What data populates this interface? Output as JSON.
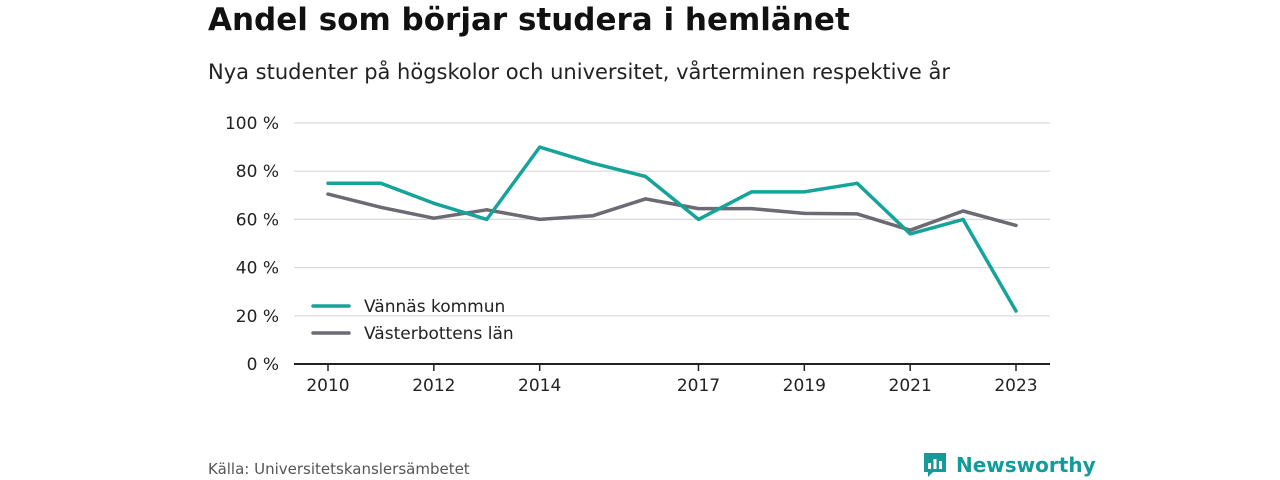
{
  "header": {
    "title": "Andel som börjar studera i hemlänet",
    "subtitle": "Nya studenter på högskolor och universitet, vårterminen respektive år"
  },
  "footer": {
    "source": "Källa: Universitetskanslersämbetet",
    "brand": "Newsworthy",
    "brand_icon": "bar-chart-logo-icon"
  },
  "colors": {
    "vannas": "#16a39a",
    "vasterbotten": "#6c6a72",
    "grid": "#d9d9d9",
    "axis": "#222222",
    "brand": "#139b9a"
  },
  "chart_data": {
    "type": "line",
    "x": [
      2010,
      2011,
      2012,
      2013,
      2014,
      2015,
      2016,
      2017,
      2018,
      2019,
      2020,
      2021,
      2022,
      2023
    ],
    "x_tick_values": [
      2010,
      2012,
      2014,
      2017,
      2019,
      2021,
      2023
    ],
    "x_tick_labels": [
      "2010",
      "2012",
      "2014",
      "2017",
      "2019",
      "2021",
      "2023"
    ],
    "y_ticks": [
      0,
      20,
      40,
      60,
      80,
      100
    ],
    "y_tick_labels": [
      "0 %",
      "20 %",
      "40 %",
      "60 %",
      "80 %",
      "100 %"
    ],
    "ylim": [
      0,
      100
    ],
    "grid": true,
    "legend_position": "bottom-left",
    "series": [
      {
        "name": "Vännäs kommun",
        "color": "#16a39a",
        "values": [
          75,
          75,
          66.7,
          60,
          90,
          83.3,
          77.8,
          60,
          71.4,
          71.4,
          75,
          54,
          60,
          22
        ]
      },
      {
        "name": "Västerbottens län",
        "color": "#6c6a72",
        "values": [
          70.5,
          65,
          60.5,
          64,
          60,
          61.5,
          68.5,
          64.5,
          64.5,
          62.5,
          62.3,
          55.5,
          63.5,
          57.5
        ]
      }
    ]
  }
}
